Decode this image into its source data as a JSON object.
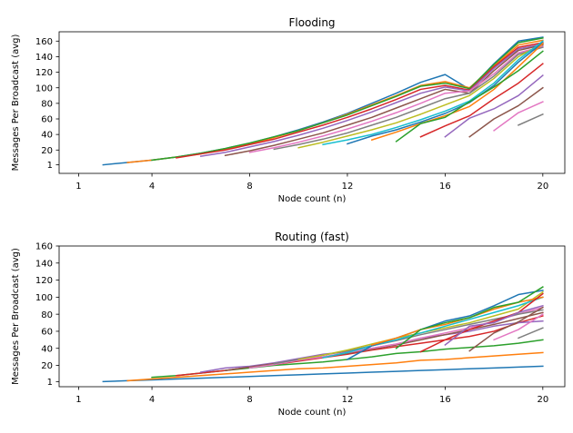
{
  "chart_data": [
    {
      "type": "line",
      "title": "Flooding",
      "xlabel": "Node count (n)",
      "ylabel": "Messages Per Broadcast (avg)",
      "xlim": [
        0.2,
        20.9
      ],
      "ylim": [
        -10,
        172
      ],
      "x_ticks": [
        1,
        4,
        8,
        12,
        16,
        20
      ],
      "y_ticks": [
        1,
        20,
        40,
        60,
        80,
        100,
        120,
        140,
        160
      ],
      "grid": false,
      "series": [
        {
          "color": "#1f77b4",
          "x": [
            2,
            3,
            4,
            5,
            6,
            7,
            8,
            9,
            10,
            11,
            12,
            13,
            14,
            15,
            16,
            17,
            18,
            19,
            20
          ],
          "y": [
            1,
            4,
            7,
            11,
            16,
            22,
            29,
            37,
            46,
            56,
            67,
            80,
            93,
            107,
            117,
            98,
            131,
            160,
            165
          ]
        },
        {
          "color": "#ff7f0e",
          "x": [
            3,
            4,
            5,
            6,
            7,
            8,
            9,
            10,
            11,
            12,
            13,
            14,
            15,
            16,
            17,
            18,
            19,
            20
          ],
          "y": [
            4,
            7,
            11,
            15,
            21,
            28,
            36,
            45,
            55,
            66,
            78,
            90,
            103,
            108,
            100,
            128,
            155,
            161
          ]
        },
        {
          "color": "#2ca02c",
          "x": [
            4,
            5,
            6,
            7,
            8,
            9,
            10,
            11,
            12,
            13,
            14,
            15,
            16,
            17,
            18,
            19,
            20
          ],
          "y": [
            7,
            11,
            16,
            22,
            29,
            37,
            45,
            55,
            65,
            77,
            89,
            102,
            106,
            99,
            130,
            158,
            164
          ]
        },
        {
          "color": "#d62728",
          "x": [
            5,
            6,
            7,
            8,
            9,
            10,
            11,
            12,
            13,
            14,
            15,
            16,
            17,
            18,
            19,
            20
          ],
          "y": [
            10,
            15,
            20,
            27,
            34,
            43,
            52,
            62,
            73,
            85,
            98,
            103,
            97,
            127,
            152,
            158
          ]
        },
        {
          "color": "#9467bd",
          "x": [
            6,
            7,
            8,
            9,
            10,
            11,
            12,
            13,
            14,
            15,
            16,
            17,
            18,
            19,
            20
          ],
          "y": [
            12,
            17,
            24,
            31,
            39,
            48,
            58,
            69,
            81,
            93,
            101,
            96,
            125,
            150,
            156
          ]
        },
        {
          "color": "#8c564b",
          "x": [
            7,
            8,
            9,
            10,
            11,
            12,
            13,
            14,
            15,
            16,
            17,
            18,
            19,
            20
          ],
          "y": [
            13,
            19,
            26,
            34,
            42,
            52,
            62,
            74,
            86,
            98,
            93,
            122,
            148,
            155
          ]
        },
        {
          "color": "#e377c2",
          "x": [
            8,
            9,
            10,
            11,
            12,
            13,
            14,
            15,
            16,
            17,
            18,
            19,
            20
          ],
          "y": [
            17,
            23,
            30,
            38,
            47,
            57,
            68,
            80,
            93,
            96,
            118,
            145,
            153
          ]
        },
        {
          "color": "#7f7f7f",
          "x": [
            9,
            10,
            11,
            12,
            13,
            14,
            15,
            16,
            17,
            18,
            19,
            20
          ],
          "y": [
            21,
            27,
            34,
            42,
            52,
            62,
            74,
            86,
            93,
            115,
            143,
            152
          ]
        },
        {
          "color": "#bcbd22",
          "x": [
            10,
            11,
            12,
            13,
            14,
            15,
            16,
            17,
            18,
            19,
            20
          ],
          "y": [
            23,
            30,
            38,
            46,
            55,
            66,
            78,
            90,
            112,
            140,
            157
          ]
        },
        {
          "color": "#17becf",
          "x": [
            11,
            12,
            13,
            14,
            15,
            16,
            17,
            18,
            19,
            20
          ],
          "y": [
            27,
            33,
            40,
            49,
            59,
            70,
            83,
            106,
            136,
            160
          ]
        },
        {
          "color": "#1f77b4",
          "x": [
            12,
            13,
            14,
            15,
            16,
            17,
            18,
            19,
            20
          ],
          "y": [
            28,
            38,
            46,
            56,
            67,
            81,
            103,
            133,
            158
          ]
        },
        {
          "color": "#ff7f0e",
          "x": [
            13,
            14,
            15,
            16,
            17,
            18,
            19,
            20
          ],
          "y": [
            33,
            43,
            54,
            64,
            76,
            98,
            127,
            157
          ]
        },
        {
          "color": "#2ca02c",
          "x": [
            14,
            15,
            16,
            17,
            18,
            19,
            20
          ],
          "y": [
            31,
            54,
            62,
            82,
            101,
            122,
            147
          ]
        },
        {
          "color": "#d62728",
          "x": [
            15,
            16,
            17,
            18,
            19,
            20
          ],
          "y": [
            37,
            51,
            64,
            86,
            106,
            131
          ]
        },
        {
          "color": "#9467bd",
          "x": [
            16,
            17,
            18,
            19,
            20
          ],
          "y": [
            37,
            61,
            73,
            90,
            116
          ]
        },
        {
          "color": "#8c564b",
          "x": [
            17,
            18,
            19,
            20
          ],
          "y": [
            37,
            60,
            77,
            100
          ]
        },
        {
          "color": "#e377c2",
          "x": [
            18,
            19,
            20
          ],
          "y": [
            45,
            68,
            82
          ]
        },
        {
          "color": "#7f7f7f",
          "x": [
            19,
            20
          ],
          "y": [
            52,
            66
          ]
        }
      ]
    },
    {
      "type": "line",
      "title": "Routing (fast)",
      "xlabel": "Node count (n)",
      "ylabel": "Messages Per Broadcast (avg)",
      "xlim": [
        0.2,
        20.9
      ],
      "ylim": [
        -5,
        160
      ],
      "x_ticks": [
        1,
        4,
        8,
        12,
        16,
        20
      ],
      "y_ticks": [
        1,
        20,
        40,
        60,
        80,
        100,
        120,
        140,
        160
      ],
      "grid": false,
      "series": [
        {
          "color": "#1f77b4",
          "x": [
            2,
            3,
            4,
            5,
            6,
            7,
            8,
            9,
            10,
            11,
            12,
            13,
            14,
            15,
            16,
            17,
            18,
            19,
            20
          ],
          "y": [
            1,
            2,
            3,
            4,
            5,
            6,
            7,
            8,
            9,
            10,
            11,
            12,
            13,
            14,
            15,
            16,
            17,
            18,
            19
          ]
        },
        {
          "color": "#ff7f0e",
          "x": [
            3,
            4,
            5,
            6,
            7,
            8,
            9,
            10,
            11,
            12,
            13,
            14,
            15,
            16,
            17,
            18,
            19,
            20
          ],
          "y": [
            2,
            4,
            6,
            8,
            10,
            12,
            14,
            16,
            17,
            19,
            21,
            23,
            26,
            27,
            29,
            31,
            33,
            35
          ]
        },
        {
          "color": "#2ca02c",
          "x": [
            4,
            5,
            6,
            7,
            8,
            9,
            10,
            11,
            12,
            13,
            14,
            15,
            16,
            17,
            18,
            19,
            20
          ],
          "y": [
            6,
            8,
            11,
            14,
            17,
            20,
            22,
            24,
            27,
            30,
            34,
            36,
            39,
            41,
            43,
            46,
            50
          ]
        },
        {
          "color": "#d62728",
          "x": [
            5,
            6,
            7,
            8,
            9,
            10,
            11,
            12,
            13,
            14,
            15,
            16,
            17,
            18,
            19,
            20
          ],
          "y": [
            8,
            11,
            14,
            18,
            21,
            25,
            29,
            33,
            38,
            42,
            46,
            50,
            54,
            60,
            70,
            78
          ]
        },
        {
          "color": "#9467bd",
          "x": [
            6,
            7,
            8,
            9,
            10,
            11,
            12,
            13,
            14,
            15,
            16,
            17,
            18,
            19,
            20
          ],
          "y": [
            12,
            17,
            19,
            23,
            28,
            33,
            36,
            40,
            45,
            52,
            56,
            60,
            66,
            70,
            72
          ]
        },
        {
          "color": "#8c564b",
          "x": [
            7,
            8,
            9,
            10,
            11,
            12,
            13,
            14,
            15,
            16,
            17,
            18,
            19,
            20
          ],
          "y": [
            14,
            18,
            22,
            26,
            30,
            34,
            39,
            44,
            50,
            56,
            62,
            68,
            75,
            82
          ]
        },
        {
          "color": "#e377c2",
          "x": [
            8,
            9,
            10,
            11,
            12,
            13,
            14,
            15,
            16,
            17,
            18,
            19,
            20
          ],
          "y": [
            17,
            21,
            26,
            30,
            35,
            40,
            45,
            52,
            58,
            64,
            72,
            80,
            88
          ]
        },
        {
          "color": "#7f7f7f",
          "x": [
            9,
            10,
            11,
            12,
            13,
            14,
            15,
            16,
            17,
            18,
            19,
            20
          ],
          "y": [
            22,
            27,
            32,
            37,
            43,
            49,
            56,
            62,
            68,
            74,
            80,
            85
          ]
        },
        {
          "color": "#bcbd22",
          "x": [
            10,
            11,
            12,
            13,
            14,
            15,
            16,
            17,
            18,
            19,
            20
          ],
          "y": [
            27,
            32,
            38,
            45,
            52,
            58,
            64,
            70,
            78,
            86,
            106
          ]
        },
        {
          "color": "#17becf",
          "x": [
            11,
            12,
            13,
            14,
            15,
            16,
            17,
            18,
            19,
            20
          ],
          "y": [
            29,
            35,
            43,
            50,
            58,
            66,
            74,
            82,
            90,
            100
          ]
        },
        {
          "color": "#1f77b4",
          "x": [
            12,
            13,
            14,
            15,
            16,
            17,
            18,
            19,
            20
          ],
          "y": [
            27,
            43,
            52,
            62,
            72,
            78,
            90,
            103,
            108
          ]
        },
        {
          "color": "#ff7f0e",
          "x": [
            13,
            14,
            15,
            16,
            17,
            18,
            19,
            20
          ],
          "y": [
            44,
            52,
            62,
            68,
            76,
            86,
            94,
            100
          ]
        },
        {
          "color": "#2ca02c",
          "x": [
            14,
            15,
            16,
            17,
            18,
            19,
            20
          ],
          "y": [
            40,
            62,
            70,
            76,
            88,
            94,
            112
          ]
        },
        {
          "color": "#d62728",
          "x": [
            15,
            16,
            17,
            18,
            19,
            20
          ],
          "y": [
            36,
            50,
            62,
            72,
            82,
            104
          ]
        },
        {
          "color": "#9467bd",
          "x": [
            16,
            17,
            18,
            19,
            20
          ],
          "y": [
            44,
            66,
            70,
            82,
            90
          ]
        },
        {
          "color": "#8c564b",
          "x": [
            17,
            18,
            19,
            20
          ],
          "y": [
            37,
            58,
            71,
            88
          ]
        },
        {
          "color": "#e377c2",
          "x": [
            18,
            19,
            20
          ],
          "y": [
            50,
            62,
            80
          ]
        },
        {
          "color": "#7f7f7f",
          "x": [
            19,
            20
          ],
          "y": [
            52,
            64
          ]
        }
      ]
    }
  ]
}
